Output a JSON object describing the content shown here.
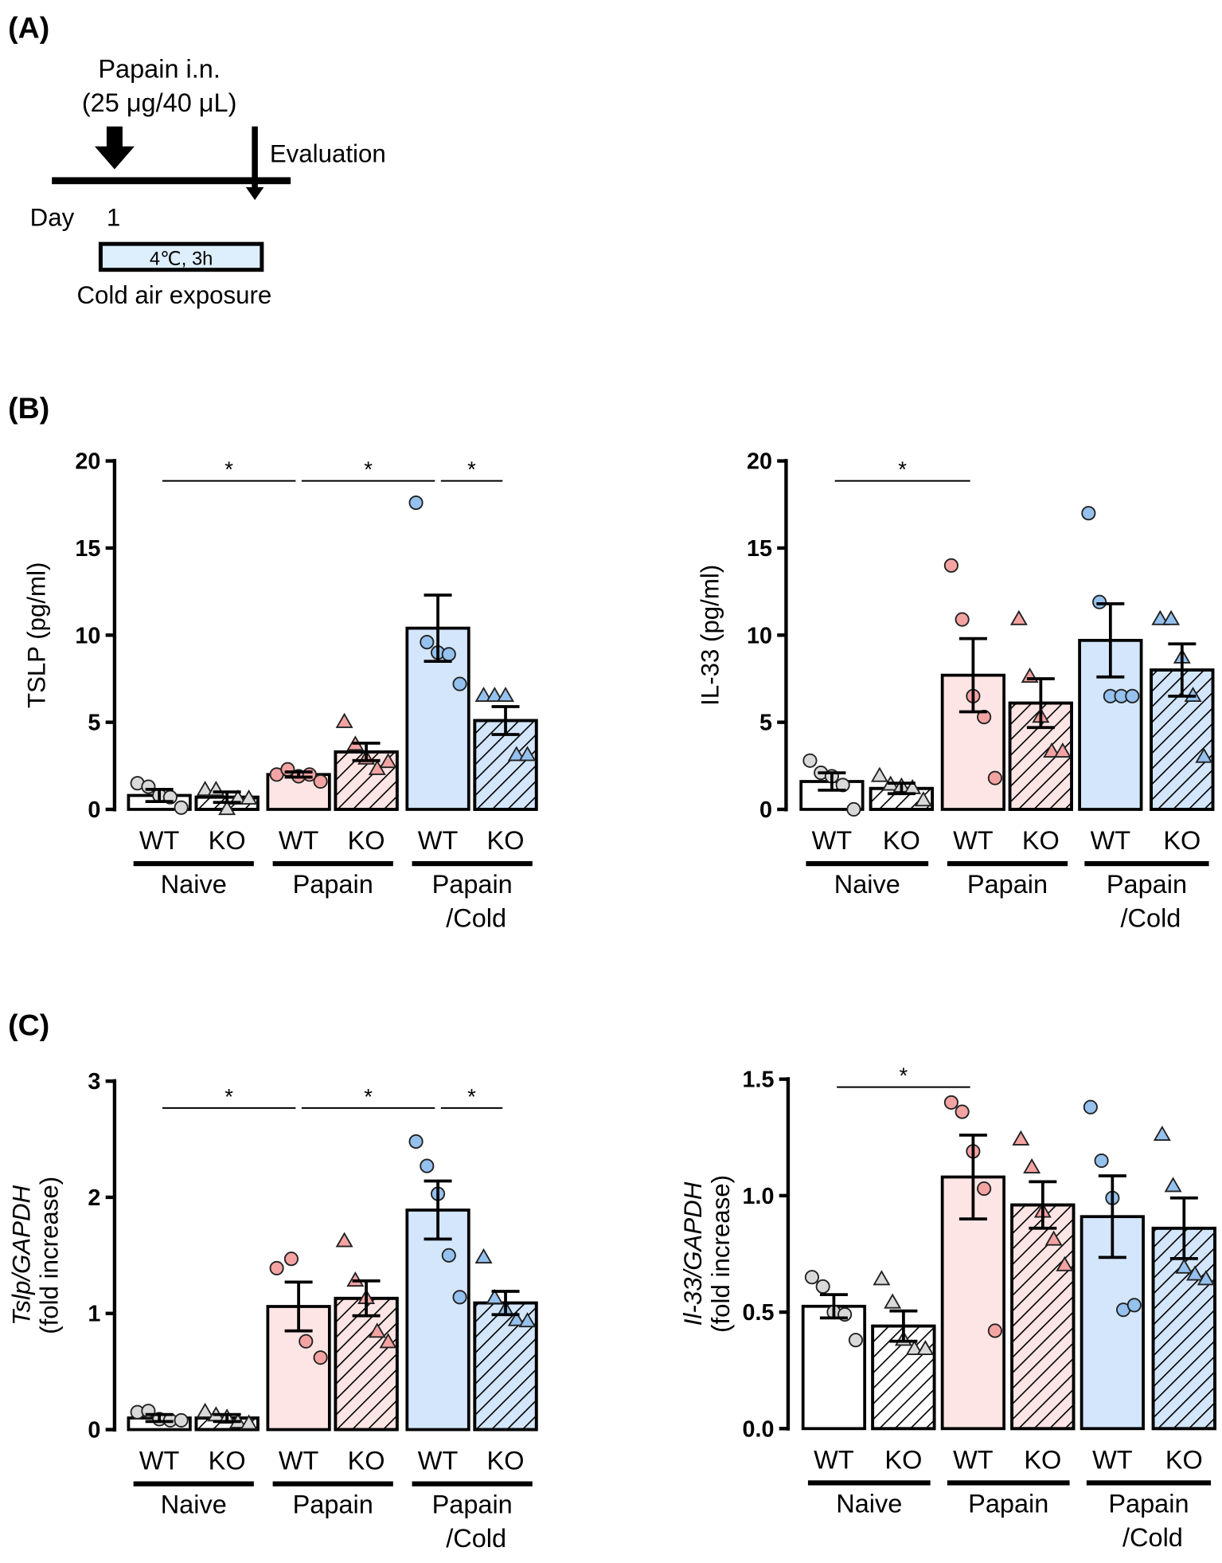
{
  "panel_a": {
    "label": "(A)",
    "treatment": "Papain i.n.",
    "dose": "(25 μg/40 μL)",
    "evaluation": "Evaluation",
    "day_label": "Day",
    "day_value": "1",
    "box_text": "4℃, 3h",
    "exposure": "Cold air exposure"
  },
  "panel_b": {
    "label": "(B)"
  },
  "panel_c": {
    "label": "(C)"
  },
  "colors": {
    "naive_bar": "#ffffff",
    "naive_point": "#d9d9d9",
    "papain_bar": "#fde5e5",
    "papain_point": "#f4a3a3",
    "cold_bar": "#d3e6fb",
    "cold_point": "#95c1ee",
    "box_fill": "#ddeefc"
  },
  "chart_data": [
    {
      "type": "bar",
      "panel": "B",
      "title": "",
      "ylabel": "TSLP (pg/ml)",
      "ylabel_italic": "",
      "ylim": [
        0,
        20
      ],
      "yticks": [
        "0",
        "5",
        "10",
        "15",
        "20"
      ],
      "ytick_values": [
        0,
        5,
        10,
        15,
        20
      ],
      "categories": [
        "WT",
        "KO",
        "WT",
        "KO",
        "WT",
        "KO"
      ],
      "groups": [
        "Naive",
        "Papain",
        "Papain\n/Cold"
      ],
      "values": [
        0.8,
        0.7,
        2.0,
        3.3,
        10.4,
        5.1
      ],
      "sem": [
        0.35,
        0.3,
        0.15,
        0.5,
        1.9,
        0.8
      ],
      "points": [
        [
          1.5,
          1.3,
          0.8,
          0.7,
          0.1
        ],
        [
          1.1,
          1.1,
          0.0,
          0.6,
          0.6
        ],
        [
          2.0,
          2.3,
          1.9,
          2.0,
          1.6
        ],
        [
          5.0,
          3.7,
          2.9,
          2.3,
          2.7
        ],
        [
          17.6,
          9.6,
          9.0,
          8.9,
          7.2
        ],
        [
          6.5,
          6.5,
          6.5,
          3.1,
          3.1
        ]
      ],
      "significance": [
        {
          "from": 0,
          "to": 2,
          "label": "*"
        },
        {
          "from": 2,
          "to": 4,
          "label": "*"
        },
        {
          "from": 4,
          "to": 5,
          "label": "*"
        }
      ]
    },
    {
      "type": "bar",
      "panel": "B",
      "title": "",
      "ylabel": "IL-33 (pg/ml)",
      "ylabel_italic": "",
      "ylim": [
        0,
        20
      ],
      "yticks": [
        "0",
        "5",
        "10",
        "15",
        "20"
      ],
      "ytick_values": [
        0,
        5,
        10,
        15,
        20
      ],
      "categories": [
        "WT",
        "KO",
        "WT",
        "KO",
        "WT",
        "KO"
      ],
      "groups": [
        "Naive",
        "Papain",
        "Papain\n/Cold"
      ],
      "values": [
        1.6,
        1.2,
        7.7,
        6.1,
        9.7,
        8.0
      ],
      "sem": [
        0.5,
        0.3,
        2.1,
        1.4,
        2.1,
        1.5
      ],
      "points": [
        [
          2.8,
          2.1,
          1.9,
          1.4,
          0.0
        ],
        [
          1.9,
          1.4,
          1.3,
          1.2,
          0.5
        ],
        [
          14.0,
          10.9,
          6.5,
          5.3,
          1.8
        ],
        [
          10.9,
          7.6,
          5.3,
          3.3,
          3.3
        ],
        [
          17.0,
          11.9,
          6.5,
          6.5,
          6.5
        ],
        [
          10.9,
          10.9,
          8.7,
          6.5,
          3.0
        ]
      ],
      "significance": [
        {
          "from": 0,
          "to": 2,
          "label": "*"
        }
      ]
    },
    {
      "type": "bar",
      "panel": "C",
      "title": "",
      "ylabel": "(fold increase)",
      "ylabel_italic": "Tslp/GAPDH",
      "ylim": [
        0,
        3
      ],
      "yticks": [
        "0",
        "1",
        "2",
        "3"
      ],
      "ytick_values": [
        0,
        1,
        2,
        3
      ],
      "categories": [
        "WT",
        "KO",
        "WT",
        "KO",
        "WT",
        "KO"
      ],
      "groups": [
        "Naive",
        "Papain",
        "Papain\n/Cold"
      ],
      "values": [
        0.1,
        0.1,
        1.06,
        1.13,
        1.89,
        1.09
      ],
      "sem": [
        0.03,
        0.03,
        0.21,
        0.15,
        0.25,
        0.1
      ],
      "points": [
        [
          0.15,
          0.16,
          0.09,
          0.08,
          0.08
        ],
        [
          0.15,
          0.12,
          0.1,
          0.06,
          0.05
        ],
        [
          1.39,
          1.47,
          0.76,
          0.62
        ],
        [
          1.62,
          1.28,
          1.13,
          0.84,
          0.75
        ],
        [
          2.48,
          2.27,
          2.03,
          1.5,
          1.14
        ],
        [
          1.48,
          1.13,
          1.03,
          0.94,
          0.93
        ]
      ],
      "significance": [
        {
          "from": 0,
          "to": 2,
          "label": "*"
        },
        {
          "from": 2,
          "to": 4,
          "label": "*"
        },
        {
          "from": 4,
          "to": 5,
          "label": "*"
        }
      ]
    },
    {
      "type": "bar",
      "panel": "C",
      "title": "",
      "ylabel": "(fold increase)",
      "ylabel_italic": "Il-33/GAPDH",
      "ylim": [
        0,
        1.5
      ],
      "yticks": [
        "0.0",
        "0.5",
        "1.0",
        "1.5"
      ],
      "ytick_values": [
        0,
        0.5,
        1.0,
        1.5
      ],
      "categories": [
        "WT",
        "KO",
        "WT",
        "KO",
        "WT",
        "KO"
      ],
      "groups": [
        "Naive",
        "Papain",
        "Papain\n/Cold"
      ],
      "values": [
        0.525,
        0.44,
        1.08,
        0.96,
        0.91,
        0.86
      ],
      "sem": [
        0.05,
        0.065,
        0.18,
        0.1,
        0.175,
        0.13
      ],
      "points": [
        [
          0.65,
          0.61,
          0.5,
          0.49,
          0.38
        ],
        [
          0.64,
          0.54,
          0.38,
          0.34,
          0.34
        ],
        [
          1.4,
          1.36,
          1.19,
          1.03,
          0.42
        ],
        [
          1.24,
          1.12,
          0.93,
          0.81,
          0.7
        ],
        [
          1.38,
          1.15,
          0.99,
          0.51,
          0.53
        ],
        [
          1.26,
          1.04,
          0.69,
          0.66,
          0.64
        ]
      ],
      "significance": [
        {
          "from": 0,
          "to": 2,
          "label": "*"
        }
      ]
    }
  ]
}
